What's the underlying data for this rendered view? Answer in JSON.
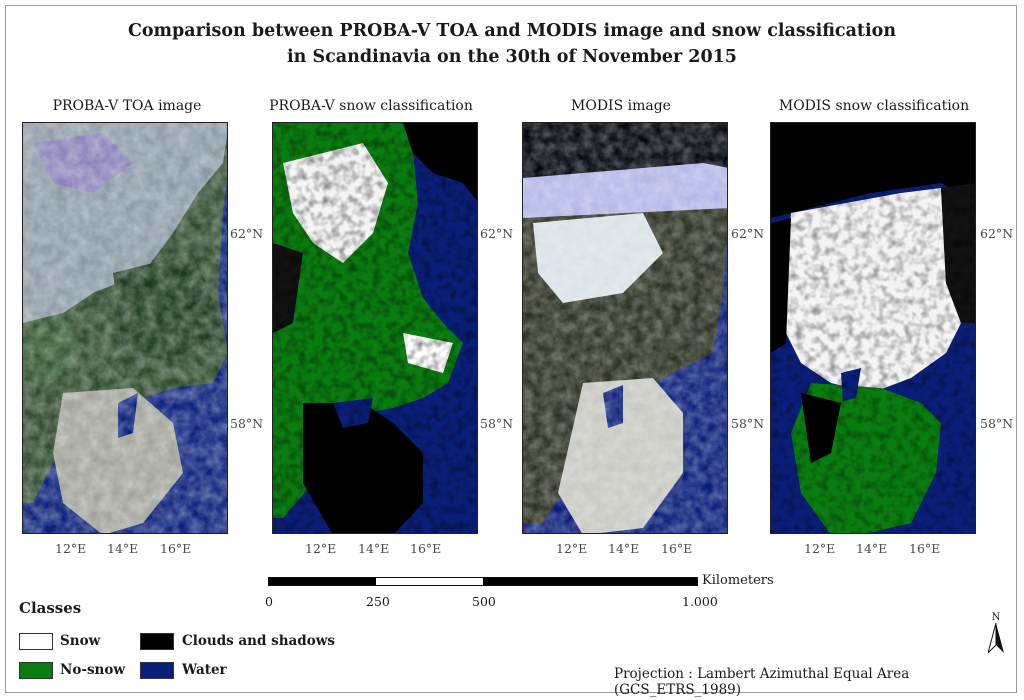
{
  "title": {
    "line1": "Comparison between PROBA-V TOA and MODIS image and snow classification",
    "line2": "in Scandinavia on the 30th of November 2015"
  },
  "panels": [
    {
      "title": "PROBA-V TOA image",
      "type": "satellite-rgb"
    },
    {
      "title": "PROBA-V snow classification",
      "type": "classification"
    },
    {
      "title": "MODIS image",
      "type": "satellite-rgb"
    },
    {
      "title": "MODIS snow classification",
      "type": "classification"
    }
  ],
  "latitude_labels": [
    "62°N",
    "58°N"
  ],
  "longitude_labels": [
    "12°E",
    "14°E",
    "16°E"
  ],
  "scalebar": {
    "ticks": [
      "0",
      "250",
      "500",
      "1.000"
    ],
    "unit": "Kilometers"
  },
  "legend": {
    "heading": "Classes",
    "items": [
      {
        "label": "Snow",
        "color": "#ffffff"
      },
      {
        "label": "Clouds and shadows",
        "color": "#000000"
      },
      {
        "label": "No-snow",
        "color": "#0a7d10"
      },
      {
        "label": "Water",
        "color": "#0a1f7a"
      }
    ]
  },
  "north_arrow": {
    "label": "N",
    "icon": "north-arrow-icon"
  },
  "projection": "Projection : Lambert Azimuthal Equal Area (GCS_ETRS_1989)"
}
